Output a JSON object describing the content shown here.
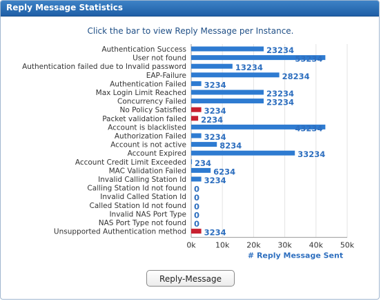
{
  "panel": {
    "title": "Reply Message Statistics",
    "instruction": "Click the bar to view Reply Message per Instance."
  },
  "legend_button": {
    "label": "Reply-Message"
  },
  "colors": {
    "bar_blue": "#2e7bd1",
    "bar_red": "#c8202f",
    "value_label": "#2e6fbf",
    "axis_title": "#2e6fbf",
    "category_label": "#333333",
    "header": "#2a6db5"
  },
  "chart_data": {
    "type": "bar",
    "orientation": "horizontal",
    "xlabel": "# Reply Message Sent",
    "xlim": [
      0,
      50000
    ],
    "xticks": [
      0,
      10000,
      20000,
      30000,
      40000,
      50000
    ],
    "xtick_labels": [
      "0k",
      "10k",
      "20k",
      "30k",
      "40k",
      "50k"
    ],
    "grid": true,
    "categories": [
      "Authentication Success",
      "User not found",
      "Authentication failed due to Invalid password",
      "EAP-Failure",
      "Authentication Failed",
      "Max Login Limit Reached",
      "Concurrency Failed",
      "No Policy Satisfied",
      "Packet validation failed",
      "Account is blacklisted",
      "Authorization Failed",
      "Account is not active",
      "Account Expired",
      "Account Credit Limit Exceeded",
      "MAC Validation Failed",
      "Invalid Calling Station Id",
      "Calling Station Id not found",
      "Invalid Called Station Id",
      "Called Station Id not found",
      "Invalid NAS Port Type",
      "NAS Port Type not found",
      "Unsupported Authentication method"
    ],
    "values": [
      23234,
      53234,
      13234,
      28234,
      3234,
      23234,
      23234,
      3234,
      2234,
      43234,
      3234,
      8234,
      33234,
      234,
      6234,
      3234,
      0,
      0,
      0,
      0,
      0,
      3234
    ],
    "value_labels": [
      "23234",
      "53234",
      "13234",
      "28234",
      "3234",
      "23234",
      "23234",
      "3234",
      "2234",
      "43234",
      "3234",
      "8234",
      "33234",
      "234",
      "6234",
      "3234",
      "0",
      "0",
      "0",
      "0",
      "0",
      "3234"
    ],
    "bar_colors": [
      "blue",
      "blue",
      "blue",
      "blue",
      "blue",
      "blue",
      "blue",
      "red",
      "red",
      "blue",
      "blue",
      "blue",
      "blue",
      "blue",
      "blue",
      "blue",
      "blue",
      "blue",
      "blue",
      "blue",
      "blue",
      "red"
    ]
  }
}
